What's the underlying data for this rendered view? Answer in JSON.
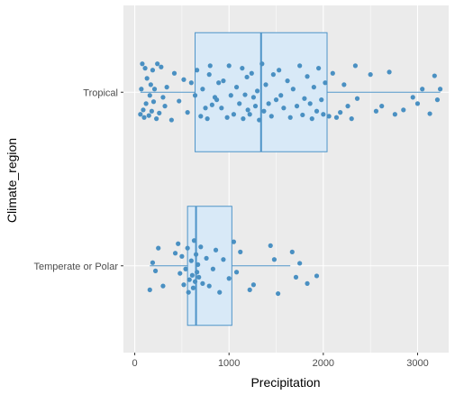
{
  "chart_data": {
    "type": "boxplot",
    "orientation": "horizontal",
    "xlabel": "Precipitation",
    "ylabel": "Climate_region",
    "xlim": [
      -120,
      3330
    ],
    "x_ticks": [
      0,
      1000,
      2000,
      3000
    ],
    "x_tick_labels": [
      "0",
      "1000",
      "2000",
      "3000"
    ],
    "grid": true,
    "panel_background": "#ebebeb",
    "grid_color": "#ffffff",
    "box_fill": "#d8e9f7",
    "box_stroke": "#4e94c8",
    "point_color": "#4a90c2",
    "categories": [
      "Tropical",
      "Temperate or Polar"
    ],
    "boxes": [
      {
        "category": "Tropical",
        "whisker_low": 60,
        "q1": 640,
        "median": 1340,
        "q3": 2040,
        "whisker_high": 3240
      },
      {
        "category": "Temperate or Polar",
        "whisker_low": 160,
        "q1": 560,
        "median": 650,
        "q3": 1030,
        "whisker_high": 1650
      }
    ],
    "points": [
      {
        "category": "Tropical",
        "values": [
          [
            60,
            0.35
          ],
          [
            70,
            -0.05
          ],
          [
            80,
            -0.45
          ],
          [
            90,
            0.28
          ],
          [
            100,
            0.4
          ],
          [
            110,
            -0.38
          ],
          [
            120,
            0.18
          ],
          [
            130,
            -0.22
          ],
          [
            150,
            0.37
          ],
          [
            160,
            0.05
          ],
          [
            170,
            -0.12
          ],
          [
            180,
            0.3
          ],
          [
            190,
            -0.35
          ],
          [
            200,
            0.15
          ],
          [
            210,
            -0.05
          ],
          [
            230,
            0.42
          ],
          [
            240,
            -0.45
          ],
          [
            260,
            0.33
          ],
          [
            280,
            -0.4
          ],
          [
            300,
            0.08
          ],
          [
            320,
            0.22
          ],
          [
            340,
            -0.08
          ],
          [
            390,
            0.44
          ],
          [
            420,
            -0.3
          ],
          [
            470,
            0.14
          ],
          [
            520,
            -0.2
          ],
          [
            560,
            0.32
          ],
          [
            600,
            -0.15
          ],
          [
            640,
            0.05
          ],
          [
            660,
            -0.35
          ],
          [
            700,
            0.38
          ],
          [
            720,
            -0.05
          ],
          [
            750,
            0.25
          ],
          [
            770,
            0.42
          ],
          [
            790,
            -0.28
          ],
          [
            800,
            -0.42
          ],
          [
            820,
            0.2
          ],
          [
            850,
            0.08
          ],
          [
            870,
            0.12
          ],
          [
            890,
            -0.15
          ],
          [
            920,
            0.25
          ],
          [
            940,
            -0.18
          ],
          [
            980,
            0.4
          ],
          [
            1000,
            -0.42
          ],
          [
            1020,
            0.05
          ],
          [
            1050,
            0.35
          ],
          [
            1080,
            -0.08
          ],
          [
            1110,
            0.18
          ],
          [
            1140,
            -0.38
          ],
          [
            1150,
            0.42
          ],
          [
            1170,
            0.04
          ],
          [
            1190,
            -0.24
          ],
          [
            1200,
            0.28
          ],
          [
            1220,
            0.35
          ],
          [
            1240,
            -0.3
          ],
          [
            1260,
            0.08
          ],
          [
            1280,
            0.22
          ],
          [
            1300,
            -0.02
          ],
          [
            1320,
            0.44
          ],
          [
            1350,
            -0.45
          ],
          [
            1370,
            0.3
          ],
          [
            1390,
            -0.12
          ],
          [
            1420,
            0.18
          ],
          [
            1450,
            0.38
          ],
          [
            1470,
            -0.28
          ],
          [
            1500,
            0.12
          ],
          [
            1530,
            -0.35
          ],
          [
            1550,
            0.05
          ],
          [
            1580,
            0.25
          ],
          [
            1620,
            -0.18
          ],
          [
            1650,
            0.4
          ],
          [
            1680,
            -0.05
          ],
          [
            1720,
            0.22
          ],
          [
            1750,
            -0.42
          ],
          [
            1780,
            0.36
          ],
          [
            1800,
            0.1
          ],
          [
            1830,
            -0.25
          ],
          [
            1860,
            0.18
          ],
          [
            1880,
            0.42
          ],
          [
            1900,
            -0.08
          ],
          [
            1930,
            0.3
          ],
          [
            1950,
            -0.38
          ],
          [
            1980,
            0.12
          ],
          [
            2000,
            0.35
          ],
          [
            2020,
            -0.15
          ],
          [
            2060,
            0.38
          ],
          [
            2100,
            -0.3
          ],
          [
            2140,
            0.4
          ],
          [
            2180,
            0.32
          ],
          [
            2220,
            -0.12
          ],
          [
            2260,
            0.22
          ],
          [
            2300,
            0.42
          ],
          [
            2340,
            -0.42
          ],
          [
            2360,
            0.1
          ],
          [
            2500,
            -0.28
          ],
          [
            2560,
            0.3
          ],
          [
            2620,
            0.22
          ],
          [
            2700,
            -0.32
          ],
          [
            2760,
            0.35
          ],
          [
            2850,
            0.28
          ],
          [
            2950,
            0.08
          ],
          [
            3000,
            0.18
          ],
          [
            3050,
            -0.05
          ],
          [
            3130,
            0.34
          ],
          [
            3180,
            -0.26
          ],
          [
            3210,
            0.12
          ],
          [
            3240,
            -0.05
          ]
        ]
      },
      {
        "category": "Temperate or Polar",
        "values": [
          [
            160,
            0.38
          ],
          [
            190,
            -0.05
          ],
          [
            220,
            0.08
          ],
          [
            250,
            -0.28
          ],
          [
            300,
            0.32
          ],
          [
            430,
            -0.2
          ],
          [
            460,
            -0.35
          ],
          [
            480,
            0.12
          ],
          [
            500,
            -0.15
          ],
          [
            520,
            0.3
          ],
          [
            540,
            0.05
          ],
          [
            560,
            -0.28
          ],
          [
            570,
            0.42
          ],
          [
            580,
            0.22
          ],
          [
            600,
            -0.08
          ],
          [
            610,
            0.15
          ],
          [
            620,
            0.35
          ],
          [
            630,
            -0.4
          ],
          [
            640,
            0.25
          ],
          [
            650,
            -0.18
          ],
          [
            660,
            0.1
          ],
          [
            670,
            -0.02
          ],
          [
            680,
            0.18
          ],
          [
            700,
            -0.3
          ],
          [
            720,
            0.28
          ],
          [
            760,
            -0.12
          ],
          [
            790,
            0.32
          ],
          [
            830,
            0.05
          ],
          [
            860,
            -0.25
          ],
          [
            900,
            0.42
          ],
          [
            940,
            -0.1
          ],
          [
            1000,
            0.2
          ],
          [
            1050,
            -0.38
          ],
          [
            1080,
            0.1
          ],
          [
            1120,
            -0.22
          ],
          [
            1220,
            0.38
          ],
          [
            1260,
            0.3
          ],
          [
            1440,
            -0.32
          ],
          [
            1480,
            -0.1
          ],
          [
            1520,
            0.44
          ],
          [
            1670,
            -0.22
          ],
          [
            1710,
            0.18
          ],
          [
            1750,
            -0.04
          ],
          [
            1830,
            0.28
          ],
          [
            1930,
            0.16
          ]
        ]
      }
    ]
  }
}
